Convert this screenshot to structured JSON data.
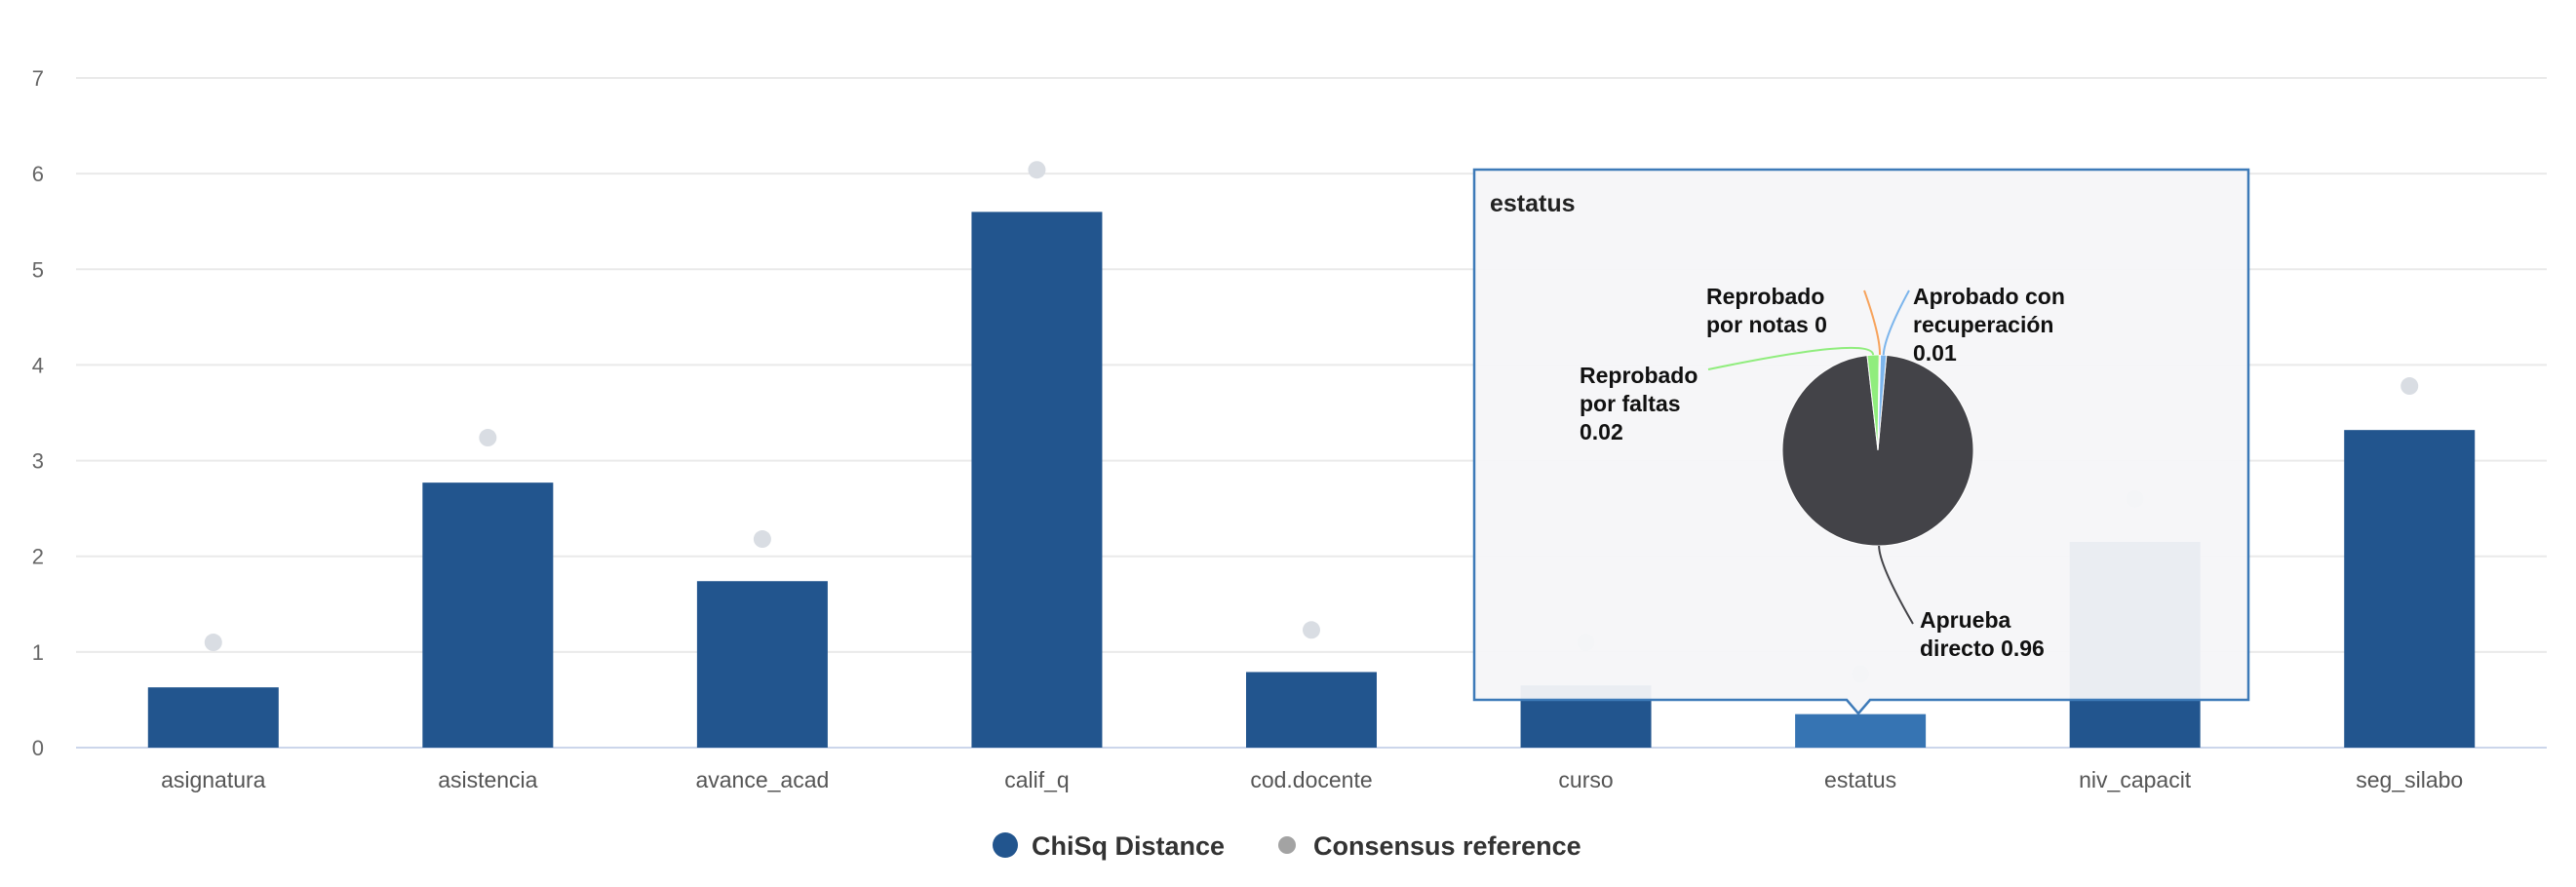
{
  "chart_data": {
    "type": "bar",
    "categories": [
      "asignatura",
      "asistencia",
      "avance_acad",
      "calif_q",
      "cod.docente",
      "curso",
      "estatus",
      "niv_capacit",
      "seg_silabo"
    ],
    "series": [
      {
        "name": "ChiSq Distance",
        "type": "bar",
        "color": "#22558e",
        "values": [
          0.63,
          2.77,
          1.74,
          5.6,
          0.79,
          0.65,
          0.35,
          2.15,
          3.32
        ]
      },
      {
        "name": "Consensus reference",
        "type": "scatter",
        "color": "#d9dde3",
        "values": [
          1.1,
          3.24,
          2.18,
          6.04,
          1.23,
          1.1,
          0.77,
          2.6,
          3.78
        ]
      }
    ],
    "ylim": [
      0,
      7
    ],
    "yticks": [
      0,
      1,
      2,
      3,
      4,
      5,
      6,
      7
    ],
    "grid": true,
    "legend": {
      "position": "bottom-center"
    },
    "highlighted_category": "estatus",
    "tooltip": {
      "title": "estatus",
      "pie": {
        "type": "pie",
        "slices": [
          {
            "label_lines": [
              "Aprueba",
              "directo 0.96"
            ],
            "value": 0.96,
            "color": "#434348"
          },
          {
            "label_lines": [
              "Reprobado",
              "por faltas",
              "0.02"
            ],
            "value": 0.02,
            "color": "#90ed7d"
          },
          {
            "label_lines": [
              "Reprobado",
              "por notas 0"
            ],
            "value": 0.002,
            "color": "#f7a35c"
          },
          {
            "label_lines": [
              "Aprobado con",
              "recuperación",
              "0.01"
            ],
            "value": 0.01,
            "color": "#7cb5ec"
          }
        ]
      }
    }
  }
}
